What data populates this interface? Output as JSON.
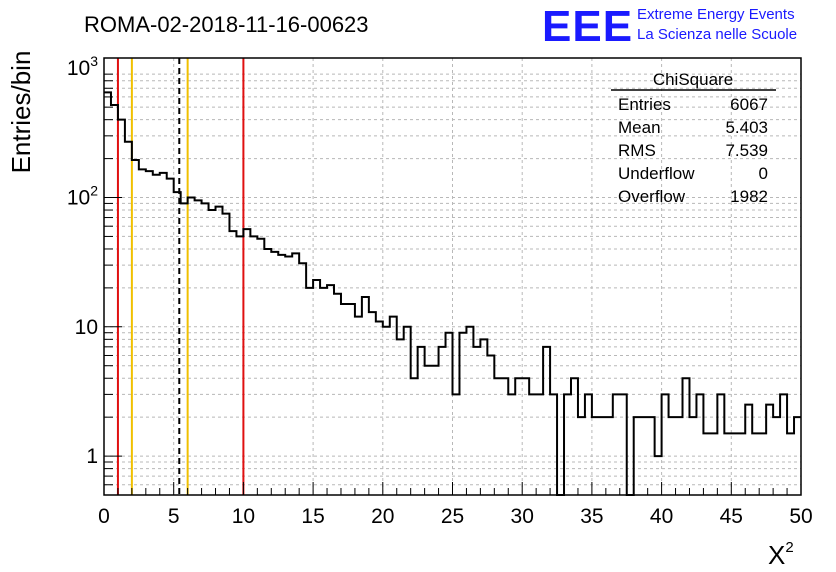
{
  "title": "ROMA-02-2018-11-16-00623",
  "logo": {
    "mark": "EEE",
    "line1": "Extreme Energy Events",
    "line2": "La Scienza nelle Scuole",
    "color": "#1a1aff"
  },
  "stats_box": {
    "name": "ChiSquare",
    "rows": [
      {
        "label": "Entries",
        "value": "6067"
      },
      {
        "label": "Mean",
        "value": "5.403"
      },
      {
        "label": "RMS",
        "value": "7.539"
      },
      {
        "label": "Underflow",
        "value": "0"
      },
      {
        "label": "Overflow",
        "value": "1982"
      }
    ]
  },
  "chart_data": {
    "type": "histogram",
    "title": "ROMA-02-2018-11-16-00623",
    "xlabel": "X",
    "xlabel_superscript": "2",
    "ylabel": "Entries/bin",
    "xlim": [
      0,
      50
    ],
    "ylim": [
      0.5,
      1200
    ],
    "yscale": "log",
    "grid": true,
    "bin_width": 0.5,
    "xticks": [
      "0",
      "5",
      "10",
      "15",
      "20",
      "25",
      "30",
      "35",
      "40",
      "45",
      "50"
    ],
    "yticks": [
      {
        "value": 1,
        "label": "1",
        "sup": ""
      },
      {
        "value": 10,
        "label": "10",
        "sup": ""
      },
      {
        "value": 100,
        "label": "10",
        "sup": "2"
      },
      {
        "value": 1000,
        "label": "10",
        "sup": "3"
      }
    ],
    "values": [
      650,
      520,
      400,
      270,
      195,
      165,
      160,
      150,
      155,
      140,
      110,
      90,
      100,
      95,
      90,
      80,
      85,
      75,
      55,
      50,
      57,
      50,
      48,
      40,
      38,
      36,
      35,
      37,
      31,
      20,
      23,
      20,
      21,
      18,
      15,
      15,
      12,
      17,
      13,
      11,
      10,
      12,
      8,
      10,
      4,
      7,
      5,
      5,
      7,
      9,
      3,
      9,
      10,
      7,
      8,
      6,
      4,
      4,
      3,
      4,
      4,
      3,
      3,
      7,
      3,
      0,
      3,
      4,
      2,
      3,
      2,
      2,
      2,
      3,
      3,
      0,
      2,
      2,
      2,
      1,
      3,
      2,
      2,
      4,
      2,
      3,
      1.5,
      1.5,
      3,
      1.5,
      1.5,
      1.5,
      2.5,
      1.5,
      1.5,
      2.5,
      2,
      3,
      1.5,
      2
    ],
    "vertical_lines": [
      {
        "x": 1,
        "color": "#e01010",
        "style": "solid"
      },
      {
        "x": 2,
        "color": "#f0c000",
        "style": "solid"
      },
      {
        "x": 5.4,
        "color": "#000000",
        "style": "dashed"
      },
      {
        "x": 6,
        "color": "#f0c000",
        "style": "solid"
      },
      {
        "x": 10,
        "color": "#e01010",
        "style": "solid"
      }
    ]
  }
}
